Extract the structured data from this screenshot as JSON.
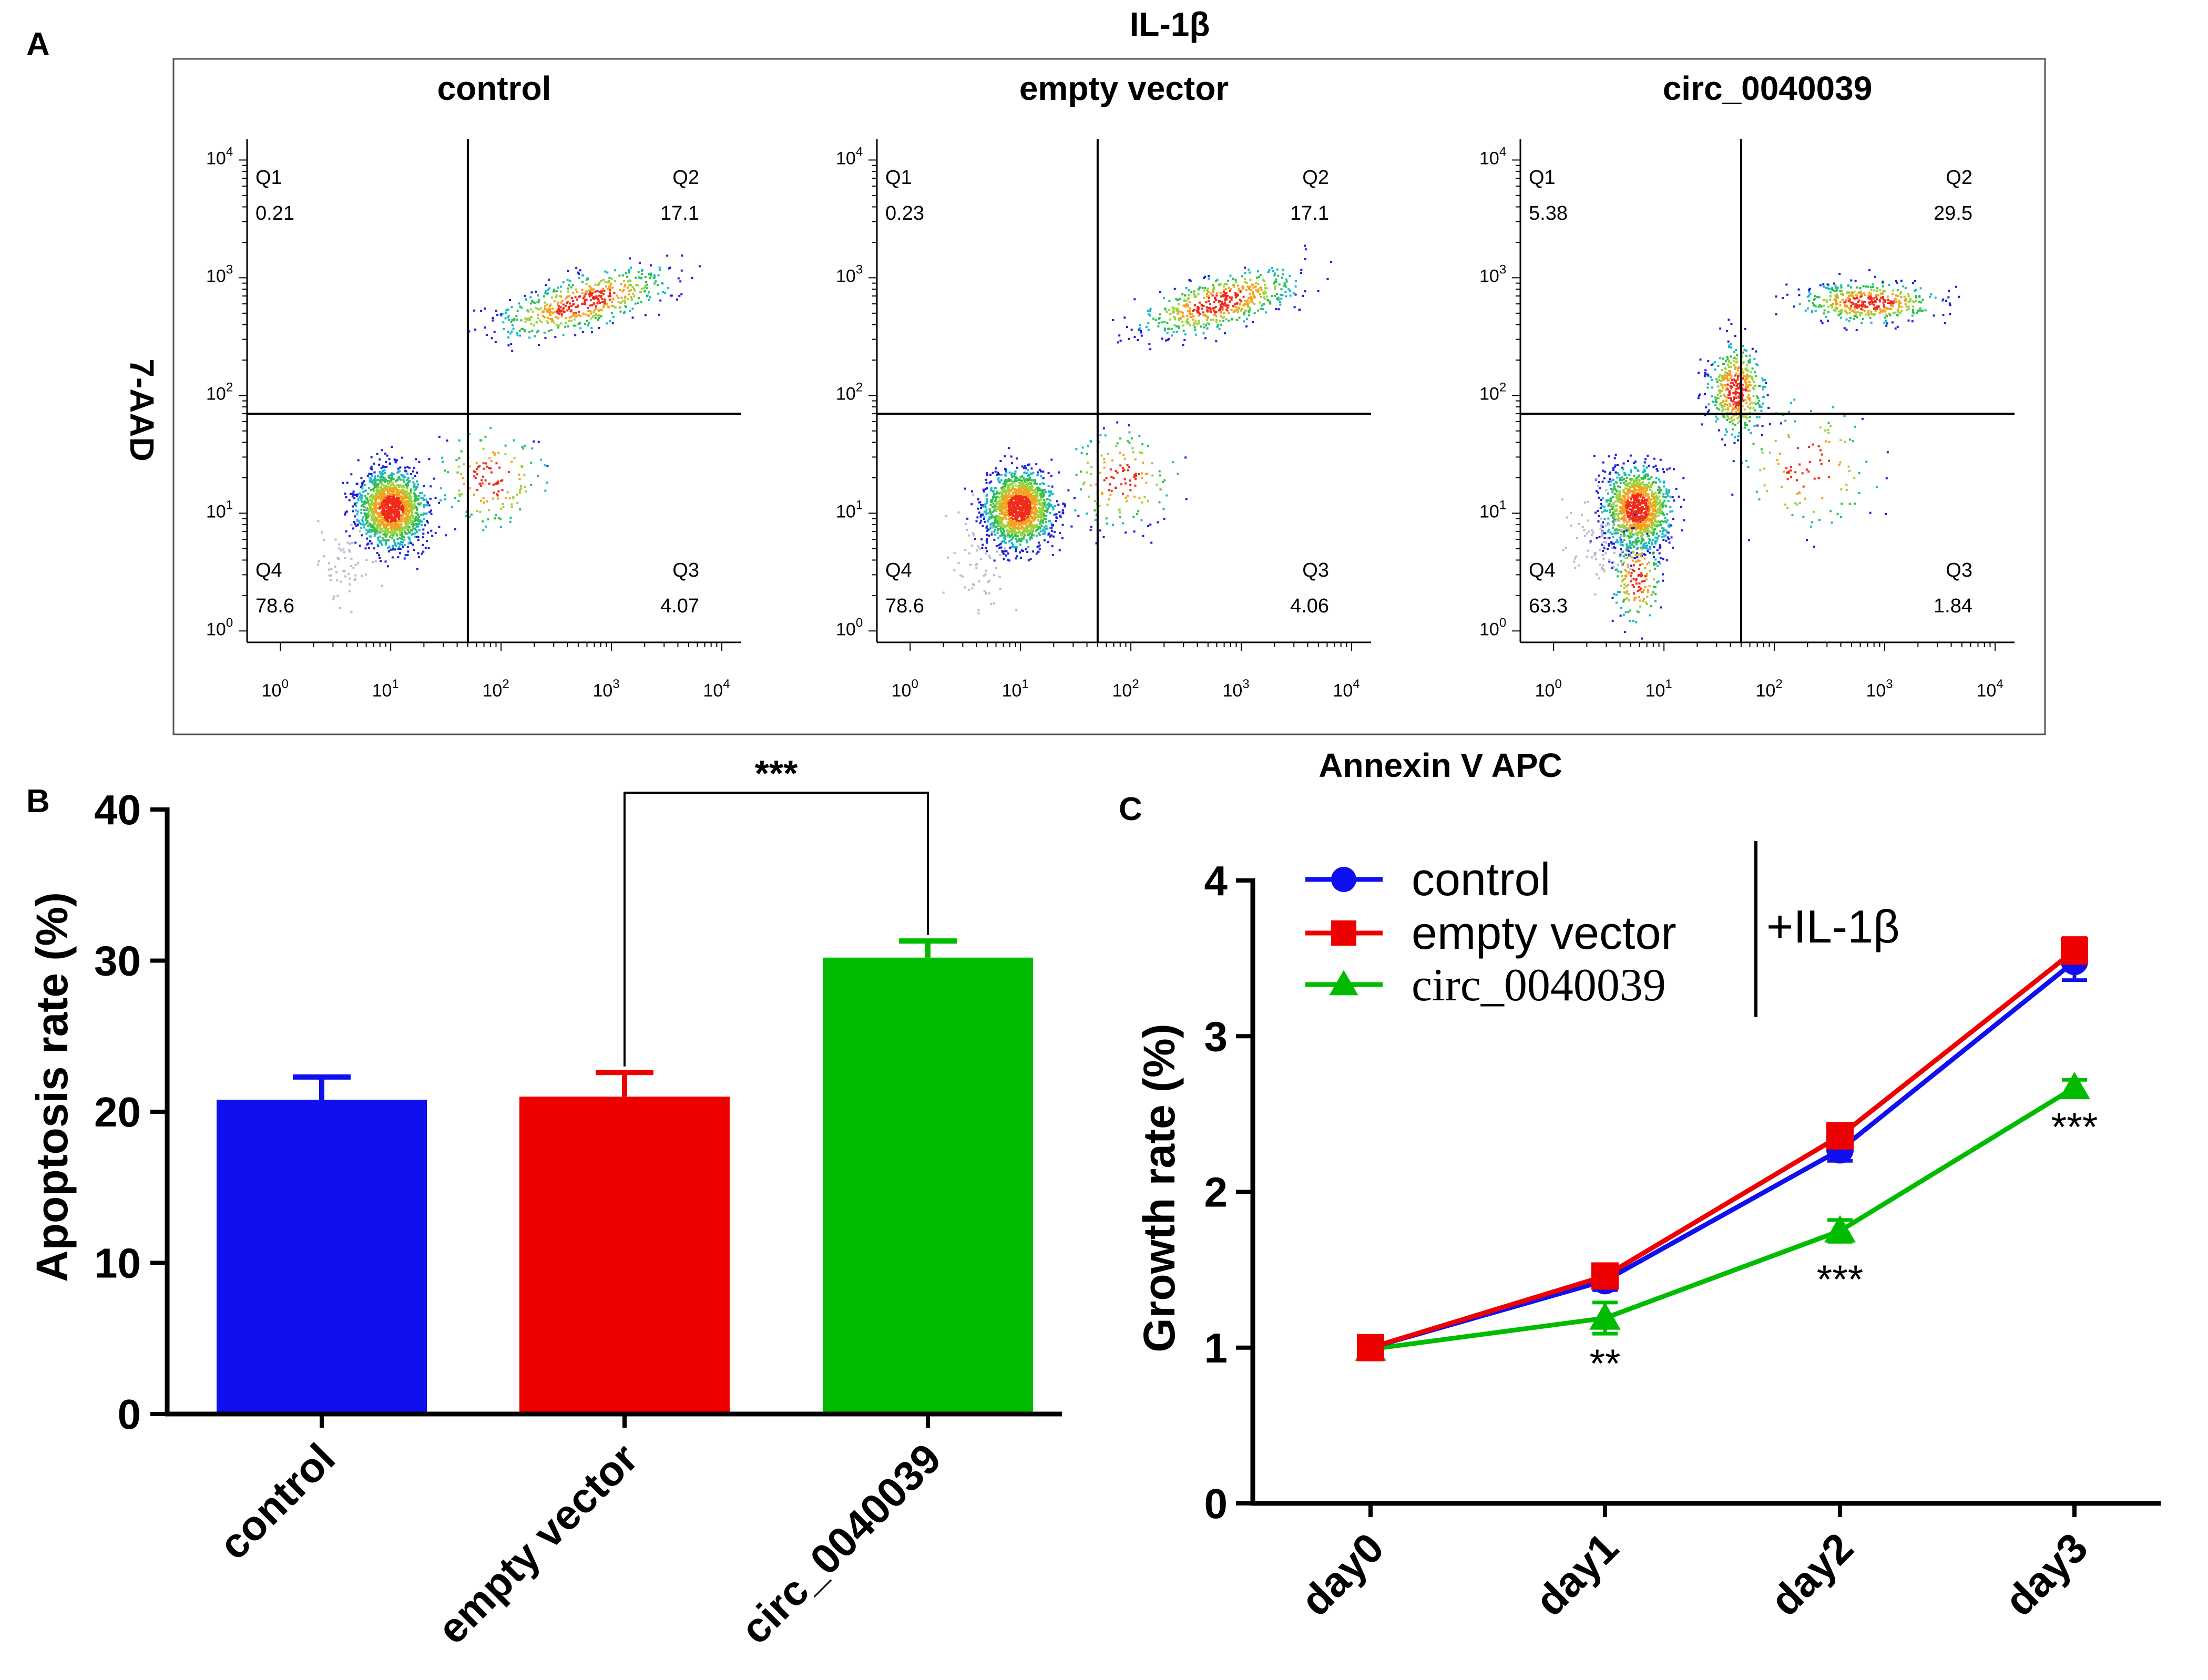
{
  "panel_labels": {
    "a": "A",
    "b": "B",
    "c": "C"
  },
  "colors": {
    "control": "#1010ee",
    "empty_vector": "#ee0000",
    "circ": "#00bb00",
    "axis": "#000000",
    "frame": "#555555"
  },
  "chart_data": [
    {
      "type": "scatter",
      "panel": "A",
      "title": "IL-1β",
      "xlabel": "Annexin V APC",
      "ylabel": "7-AAD",
      "x_scale": "log",
      "y_scale": "log",
      "xlim": [
        0.5,
        15000
      ],
      "ylim": [
        0.8,
        15000
      ],
      "x_tick_labels": [
        "10",
        "10",
        "10",
        "10",
        "10"
      ],
      "x_tick_exponents": [
        "0",
        "1",
        "2",
        "3",
        "4"
      ],
      "y_tick_labels": [
        "10",
        "10",
        "10",
        "10",
        "10"
      ],
      "y_tick_exponents": [
        "0",
        "1",
        "2",
        "3",
        "4"
      ],
      "gate_x": 50,
      "gate_y": 70,
      "plots": [
        {
          "name": "control",
          "quadrants": [
            {
              "label": "Q1",
              "value": "0.21"
            },
            {
              "label": "Q2",
              "value": "17.1"
            },
            {
              "label": "Q3",
              "value": "4.07"
            },
            {
              "label": "Q4",
              "value": "78.6"
            }
          ]
        },
        {
          "name": "empty vector",
          "quadrants": [
            {
              "label": "Q1",
              "value": "0.23"
            },
            {
              "label": "Q2",
              "value": "17.1"
            },
            {
              "label": "Q3",
              "value": "4.06"
            },
            {
              "label": "Q4",
              "value": "78.6"
            }
          ]
        },
        {
          "name": "circ_0040039",
          "quadrants": [
            {
              "label": "Q1",
              "value": "5.38"
            },
            {
              "label": "Q2",
              "value": "29.5"
            },
            {
              "label": "Q3",
              "value": "1.84"
            },
            {
              "label": "Q4",
              "value": "63.3"
            }
          ]
        }
      ]
    },
    {
      "type": "bar",
      "panel": "B",
      "categories": [
        "control",
        "empty vector",
        "circ_0040039"
      ],
      "values": [
        20.8,
        21.0,
        30.2
      ],
      "errors": [
        1.5,
        1.6,
        1.1
      ],
      "ylabel": "Apoptosis rate (%)",
      "ylim": [
        0,
        40
      ],
      "y_ticks": [
        "0",
        "10",
        "20",
        "30",
        "40"
      ],
      "significance": {
        "from": 1,
        "to": 2,
        "label": "***"
      }
    },
    {
      "type": "line",
      "panel": "C",
      "x": [
        "day0",
        "day1",
        "day2",
        "day3"
      ],
      "ylabel": "Growth rate (%)",
      "ylim": [
        0,
        4
      ],
      "y_ticks": [
        "0",
        "1",
        "2",
        "3",
        "4"
      ],
      "series": [
        {
          "name": "control",
          "marker": "circle",
          "values": [
            1.0,
            1.43,
            2.27,
            3.48
          ],
          "errors": [
            0.05,
            0.06,
            0.07,
            0.12
          ]
        },
        {
          "name": "empty vector",
          "marker": "square",
          "values": [
            1.0,
            1.46,
            2.36,
            3.55
          ],
          "errors": [
            0.05,
            0.05,
            0.06,
            0.08
          ]
        },
        {
          "name": "circ_0040039",
          "marker": "triangle",
          "values": [
            0.99,
            1.19,
            1.75,
            2.67
          ],
          "errors": [
            0.04,
            0.1,
            0.07,
            0.05
          ]
        }
      ],
      "annotations": [
        "",
        "**",
        "***",
        "***"
      ],
      "legend_bracket_label": "+IL-1β"
    }
  ]
}
